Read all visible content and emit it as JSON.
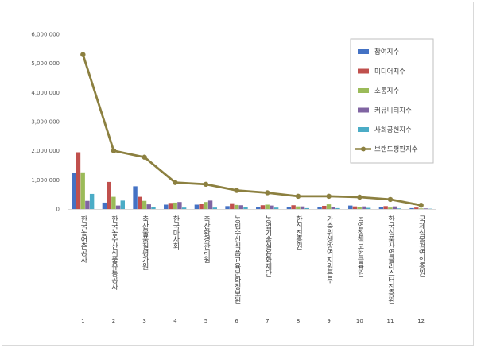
{
  "chart_data": {
    "type": "bar",
    "combo_line_series": "브랜드평판지수",
    "ylim": [
      0,
      6000000
    ],
    "y_ticks": [
      "0",
      "1,000,000",
      "2,000,000",
      "3,000,000",
      "4,000,000",
      "5,000,000",
      "6,000,000"
    ],
    "y_tick_values": [
      0,
      1000000,
      2000000,
      3000000,
      4000000,
      5000000,
      6000000
    ],
    "grid": false,
    "legend_position": "right",
    "categories": [
      "한국농어촌공사",
      "한국농수산식품유통공사",
      "축산물품질평가원",
      "한국마사회",
      "축산환경관리원",
      "농림수산식품교육문화정보원",
      "농업기술실용화재단",
      "한식진흥원",
      "가축위생방역지원본부",
      "농업정책보험금융원",
      "한국식품산업클러스터진흥원",
      "국제식물검역인증원"
    ],
    "category_numbers": [
      "1",
      "2",
      "3",
      "4",
      "5",
      "6",
      "7",
      "8",
      "9",
      "10",
      "11",
      "12"
    ],
    "series": [
      {
        "name": "참여지수",
        "color": "#4472c4",
        "type": "bar",
        "values": [
          1250000,
          220000,
          780000,
          150000,
          150000,
          100000,
          80000,
          70000,
          60000,
          120000,
          60000,
          30000
        ]
      },
      {
        "name": "미디어지수",
        "color": "#c0504d",
        "type": "bar",
        "values": [
          1950000,
          930000,
          420000,
          210000,
          170000,
          200000,
          130000,
          130000,
          110000,
          90000,
          100000,
          50000
        ]
      },
      {
        "name": "소통지수",
        "color": "#9bbb59",
        "type": "bar",
        "values": [
          1260000,
          420000,
          280000,
          220000,
          240000,
          140000,
          150000,
          90000,
          160000,
          80000,
          50000,
          20000
        ]
      },
      {
        "name": "커뮤니티지수",
        "color": "#8064a2",
        "type": "bar",
        "values": [
          280000,
          120000,
          160000,
          240000,
          290000,
          130000,
          120000,
          90000,
          80000,
          90000,
          90000,
          20000
        ]
      },
      {
        "name": "사회공헌지수",
        "color": "#4bacc6",
        "type": "bar",
        "values": [
          520000,
          290000,
          70000,
          50000,
          50000,
          70000,
          50000,
          30000,
          30000,
          40000,
          20000,
          10000
        ]
      },
      {
        "name": "브랜드평판지수",
        "color": "#8c8040",
        "type": "line",
        "values": [
          5300000,
          2000000,
          1780000,
          910000,
          850000,
          640000,
          560000,
          440000,
          440000,
          410000,
          330000,
          130000
        ]
      }
    ]
  }
}
